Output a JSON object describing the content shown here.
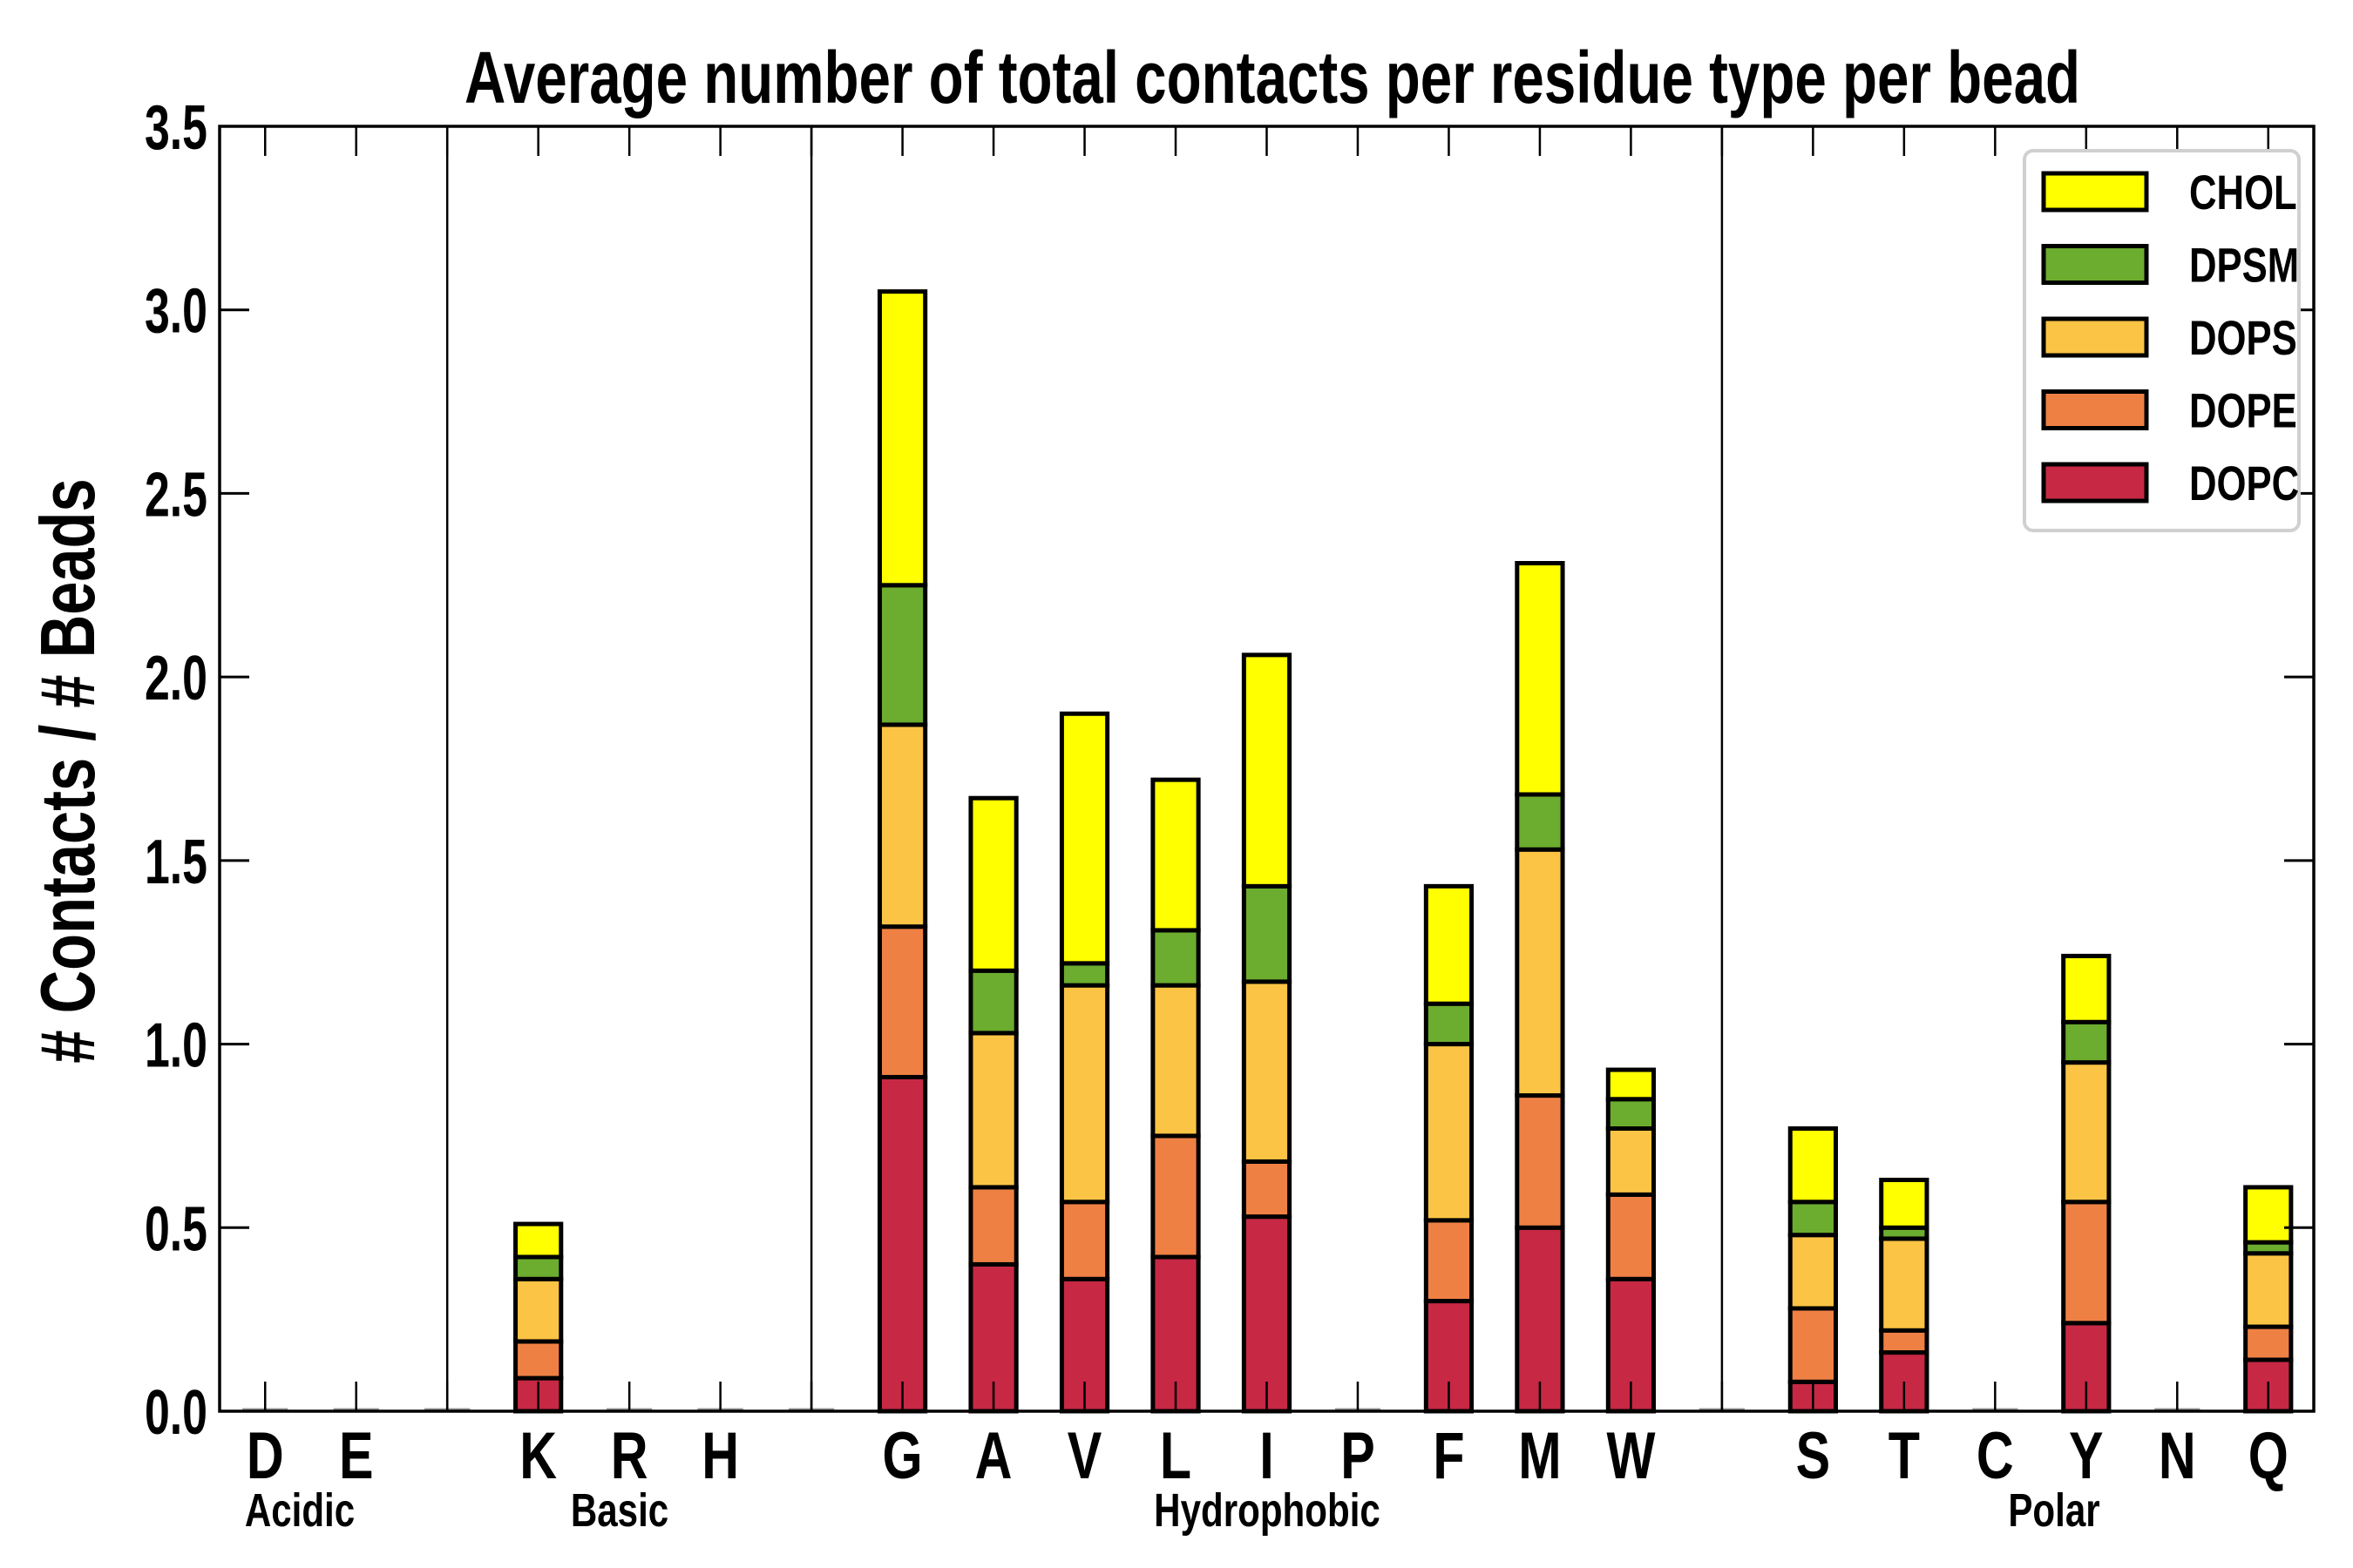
{
  "chart_data": {
    "type": "bar",
    "stacked": true,
    "title": "Average number of total contacts per residue type per bead",
    "xlabel": "",
    "ylabel": "# Contacts / # Beads",
    "ylim": [
      0,
      3.5
    ],
    "yticks": [
      "0.0",
      "0.5",
      "1.0",
      "1.5",
      "2.0",
      "2.5",
      "3.0",
      "3.5"
    ],
    "ytick_values": [
      0,
      0.5,
      1.0,
      1.5,
      2.0,
      2.5,
      3.0,
      3.5
    ],
    "grid": false,
    "legend_position": "top-right",
    "categories": [
      "D",
      "E",
      "",
      "K",
      "R",
      "H",
      "",
      "G",
      "A",
      "V",
      "L",
      "I",
      "P",
      "F",
      "M",
      "W",
      "",
      "S",
      "T",
      "C",
      "Y",
      "N",
      "Q"
    ],
    "groups": [
      {
        "label": "Acidic",
        "members": [
          "D",
          "E"
        ]
      },
      {
        "label": "Basic",
        "members": [
          "K",
          "R",
          "H"
        ]
      },
      {
        "label": "Hydrophobic",
        "members": [
          "G",
          "A",
          "V",
          "L",
          "I",
          "P",
          "F",
          "M",
          "W"
        ]
      },
      {
        "label": "Polar",
        "members": [
          "S",
          "T",
          "C",
          "Y",
          "N",
          "Q"
        ]
      }
    ],
    "series": [
      {
        "name": "DOPC",
        "color": "#C72844",
        "values": [
          0,
          0,
          0,
          0.09,
          0,
          0,
          0,
          0.91,
          0.4,
          0.36,
          0.42,
          0.53,
          0,
          0.3,
          0.5,
          0.36,
          0,
          0.08,
          0.16,
          0,
          0.24,
          0,
          0.14
        ]
      },
      {
        "name": "DOPE",
        "color": "#EF8044",
        "values": [
          0,
          0,
          0,
          0.1,
          0,
          0,
          0,
          0.41,
          0.21,
          0.21,
          0.33,
          0.15,
          0,
          0.22,
          0.36,
          0.23,
          0,
          0.2,
          0.06,
          0,
          0.33,
          0,
          0.09
        ]
      },
      {
        "name": "DOPS",
        "color": "#FBC444",
        "values": [
          0,
          0,
          0,
          0.17,
          0,
          0,
          0,
          0.55,
          0.42,
          0.59,
          0.41,
          0.49,
          0,
          0.48,
          0.67,
          0.18,
          0,
          0.2,
          0.25,
          0,
          0.38,
          0,
          0.2
        ]
      },
      {
        "name": "DPSM",
        "color": "#6CAC2E",
        "values": [
          0,
          0,
          0,
          0.06,
          0,
          0,
          0,
          0.38,
          0.17,
          0.06,
          0.15,
          0.26,
          0,
          0.11,
          0.15,
          0.08,
          0,
          0.09,
          0.03,
          0,
          0.11,
          0,
          0.03
        ]
      },
      {
        "name": "CHOL",
        "color": "#FFFF00",
        "values": [
          0,
          0,
          0,
          0.09,
          0,
          0,
          0,
          0.8,
          0.47,
          0.68,
          0.41,
          0.63,
          0,
          0.32,
          0.63,
          0.08,
          0,
          0.2,
          0.13,
          0,
          0.18,
          0,
          0.15
        ]
      }
    ],
    "legend_order": [
      "CHOL",
      "DPSM",
      "DOPS",
      "DOPE",
      "DOPC"
    ]
  }
}
